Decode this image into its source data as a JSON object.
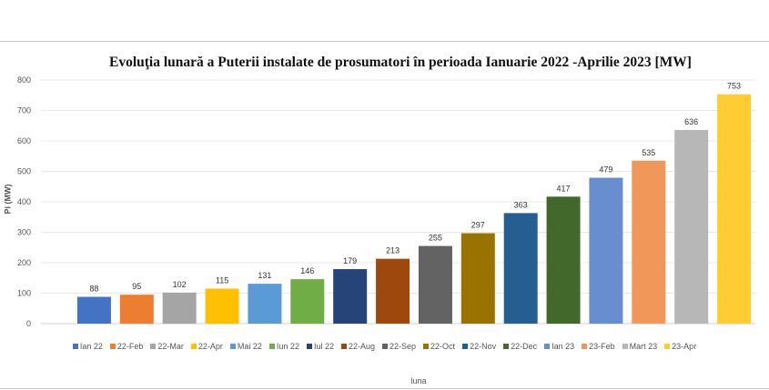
{
  "chart_data": {
    "type": "bar",
    "title": "Evoluţia lunară a Puterii instalate de prosumatori în perioada Ianuarie 2022 -Aprilie 2023 [MW]",
    "xlabel": "luna",
    "ylabel": "Pi (MW)",
    "ylim": [
      0,
      800
    ],
    "yticks": [
      0,
      100,
      200,
      300,
      400,
      500,
      600,
      700,
      800
    ],
    "grid": true,
    "legend_placement": "bottom",
    "categories": [
      "Ian 22",
      "22-Feb",
      "22-Mar",
      "22-Apr",
      "Mai 22",
      "Iun 22",
      "Iul 22",
      "22-Aug",
      "22-Sep",
      "22-Oct",
      "22-Nov",
      "22-Dec",
      "Ian 23",
      "23-Feb",
      "Mart 23",
      "23-Apr"
    ],
    "values": [
      88,
      95,
      102,
      115,
      131,
      146,
      179,
      213,
      255,
      297,
      363,
      417,
      479,
      535,
      636,
      753
    ],
    "colors": [
      "#4472c4",
      "#ed7d31",
      "#a5a5a5",
      "#ffc000",
      "#5b9bd5",
      "#70ad47",
      "#264478",
      "#9e480e",
      "#636363",
      "#997300",
      "#255e91",
      "#43682b",
      "#698ed0",
      "#f1975a",
      "#b7b7b7",
      "#ffcd33"
    ]
  }
}
